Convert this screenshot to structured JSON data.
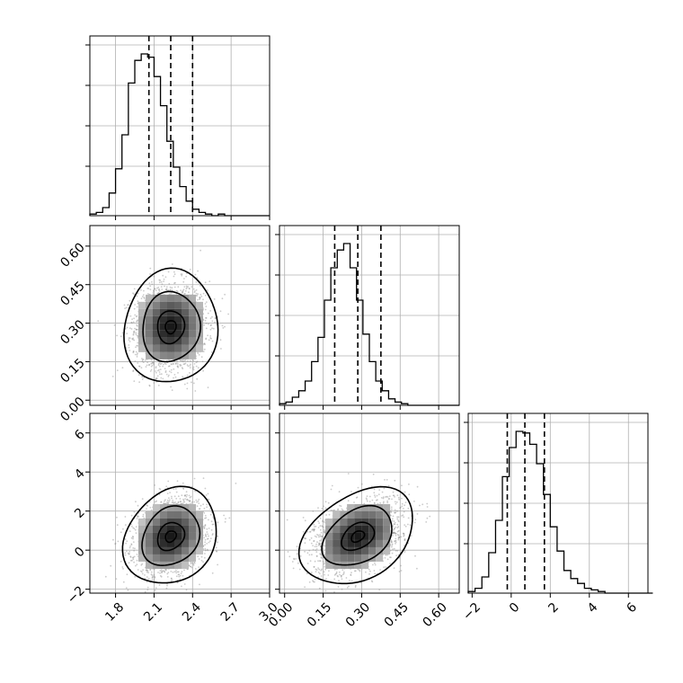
{
  "chart_data": {
    "type": "corner",
    "parameters": [
      {
        "xlim": [
          1.6,
          3.0
        ],
        "ticks": [
          "1.8",
          "2.1",
          "2.4",
          "2.7",
          "3.0"
        ],
        "tick_values": [
          1.8,
          2.1,
          2.4,
          2.7,
          3.0
        ],
        "quantiles": [
          2.06,
          2.23,
          2.4
        ]
      },
      {
        "xlim": [
          -0.02,
          0.68
        ],
        "ticks": [
          "0.00",
          "0.15",
          "0.30",
          "0.45",
          "0.60"
        ],
        "tick_values": [
          0.0,
          0.15,
          0.3,
          0.45,
          0.6
        ],
        "quantiles": [
          0.195,
          0.285,
          0.375
        ]
      },
      {
        "xlim": [
          -2.2,
          7.0
        ],
        "ticks": [
          "−2",
          "0",
          "2",
          "4",
          "6"
        ],
        "tick_values": [
          -2,
          0,
          2,
          4,
          6
        ],
        "quantiles": [
          -0.2,
          0.7,
          1.7
        ]
      }
    ],
    "histograms": [
      {
        "bin_edges_from": 1.6,
        "bin_width": 0.05,
        "counts": [
          1,
          2,
          5,
          14,
          29,
          50,
          82,
          96,
          100,
          98,
          86,
          68,
          46,
          30,
          18,
          9,
          4,
          2,
          1,
          0,
          1,
          0,
          0,
          0,
          0,
          0,
          0,
          0
        ]
      },
      {
        "bin_edges_from": -0.02,
        "bin_width": 0.025,
        "counts": [
          1,
          2,
          5,
          9,
          15,
          27,
          42,
          65,
          85,
          96,
          100,
          85,
          65,
          44,
          27,
          15,
          9,
          4,
          2,
          1,
          0,
          0,
          0,
          0,
          0,
          0,
          0,
          0
        ]
      },
      {
        "bin_edges_from": -2.2,
        "bin_width": 0.35,
        "counts": [
          1,
          3,
          10,
          25,
          45,
          72,
          90,
          100,
          99,
          92,
          80,
          61,
          41,
          26,
          14,
          9,
          6,
          3,
          2,
          1,
          0,
          0,
          0,
          0,
          0,
          0,
          0
        ]
      }
    ],
    "pairs": [
      {
        "x_param": 0,
        "y_param": 1,
        "center": [
          2.23,
          0.285
        ],
        "sd": [
          0.14,
          0.085
        ],
        "corr": 0.05
      },
      {
        "x_param": 0,
        "y_param": 2,
        "center": [
          2.23,
          0.7
        ],
        "sd": [
          0.14,
          0.95
        ],
        "corr": 0.2
      },
      {
        "x_param": 1,
        "y_param": 2,
        "center": [
          0.285,
          0.7
        ],
        "sd": [
          0.085,
          0.95
        ],
        "corr": 0.35
      }
    ],
    "contour_levels": [
      0.3,
      0.75,
      1.6,
      2.6
    ],
    "grid": true
  }
}
